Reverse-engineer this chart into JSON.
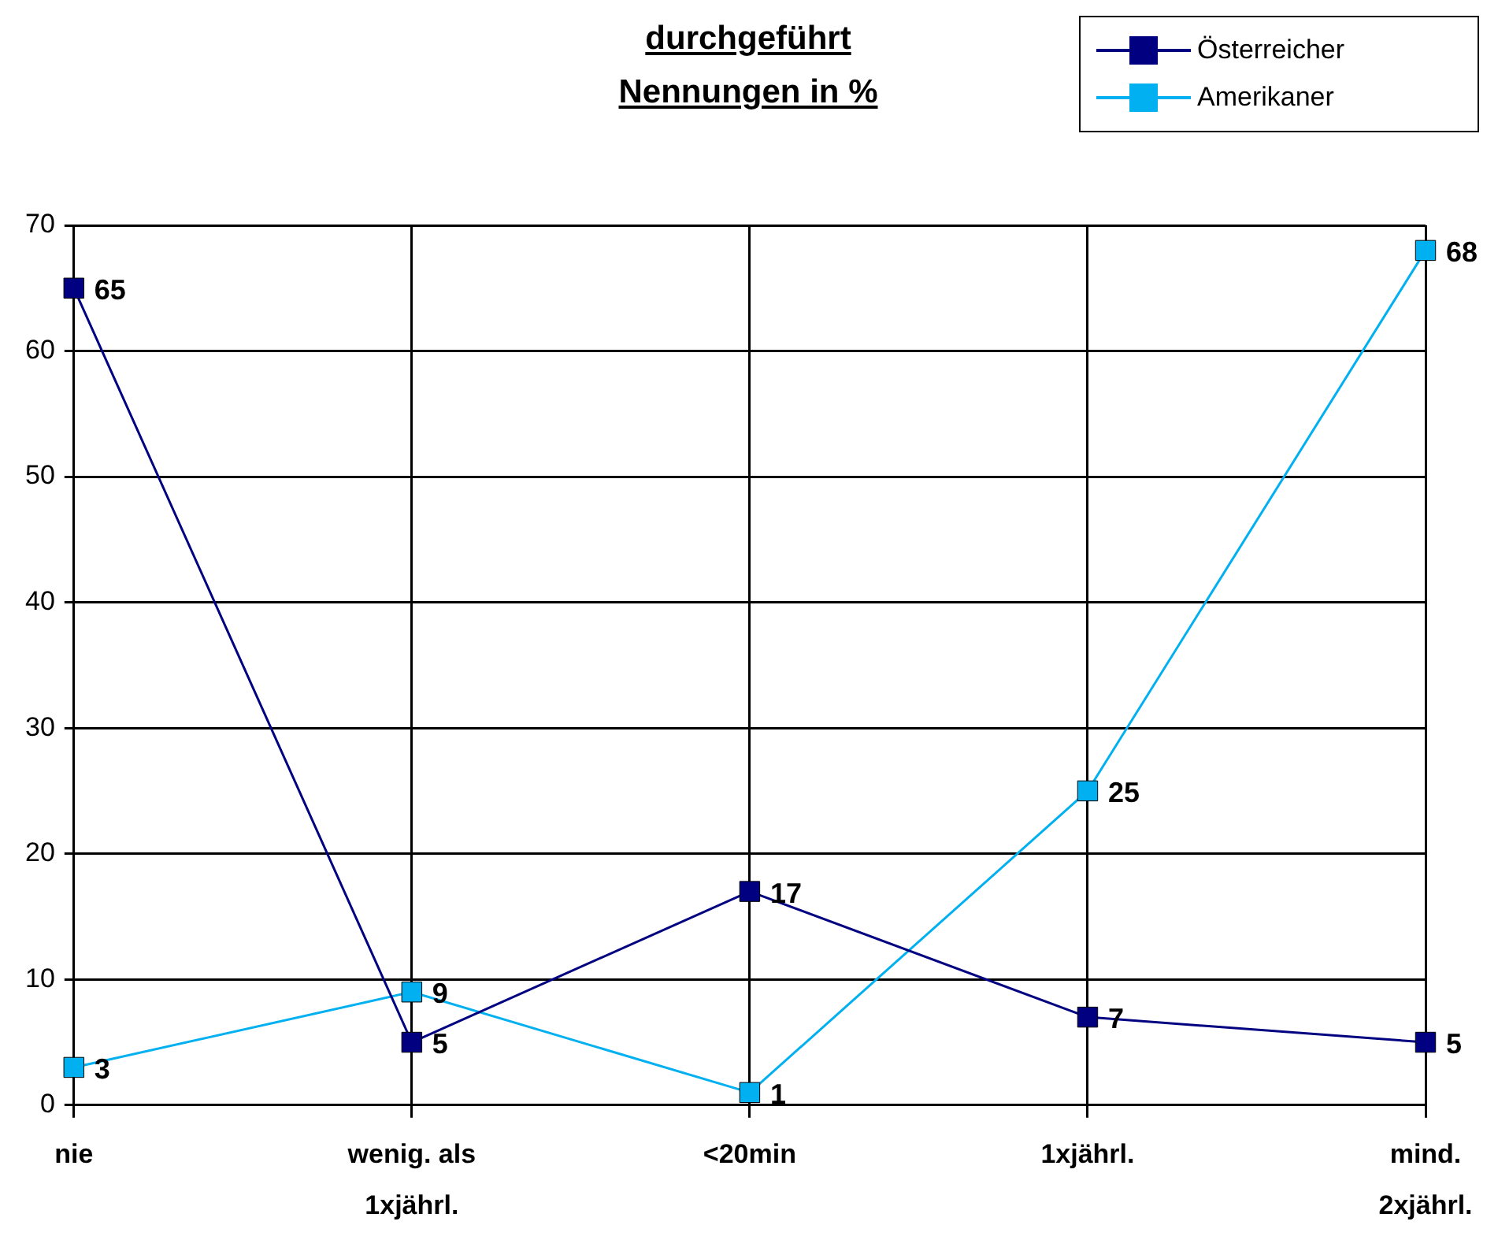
{
  "chart_data": {
    "type": "line",
    "title": "durchgeführt",
    "subtitle": "Nennungen in %",
    "categories": [
      "nie",
      "wenig. als 1xjährl.",
      "<20min",
      "1xjährl.",
      "mind. 2xjährl."
    ],
    "series": [
      {
        "name": "Österreicher",
        "color": "#000080",
        "values": [
          65,
          5,
          17,
          7,
          5
        ]
      },
      {
        "name": "Amerikaner",
        "color": "#00b0f0",
        "values": [
          3,
          9,
          1,
          25,
          68
        ]
      }
    ],
    "ylim": [
      0,
      70
    ],
    "yticks": [
      0,
      10,
      20,
      30,
      40,
      50,
      60,
      70
    ],
    "grid": true,
    "legend": "top right",
    "marker": "square",
    "line_style": "solid",
    "data_labels": true
  }
}
